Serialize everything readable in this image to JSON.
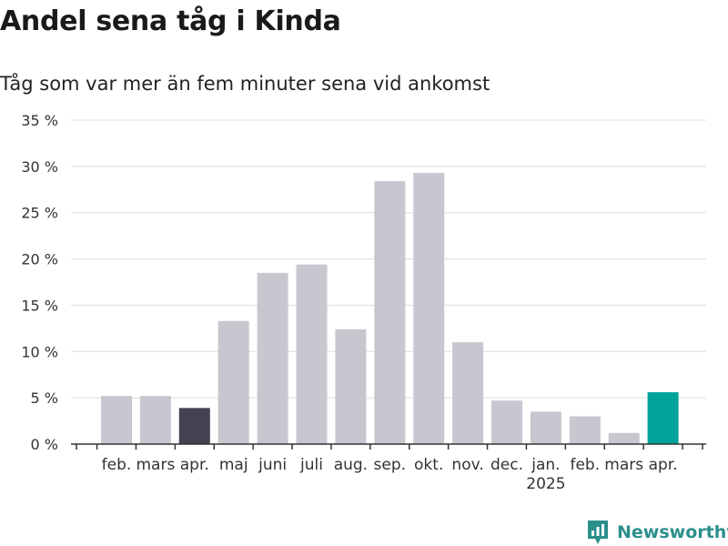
{
  "title": "Andel sena tåg i Kinda",
  "subtitle": "Tåg som var mer än fem minuter sena vid ankomst",
  "brand": {
    "name": "Newsworthy",
    "icon": "newsworthy-logo-icon",
    "color": "#2b8f8b"
  },
  "colors": {
    "default": "#c8c7d0",
    "previous_year": "#434250",
    "highlight": "#00a39a",
    "grid": "#dddddd",
    "axis": "#333333"
  },
  "chart_data": {
    "type": "bar",
    "categories": [
      "feb.",
      "mars",
      "apr.",
      "maj",
      "juni",
      "juli",
      "aug.",
      "sep.",
      "okt.",
      "nov.",
      "dec.",
      "jan.",
      "feb.",
      "mars",
      "apr."
    ],
    "year_labels": [
      {
        "index": 11,
        "label": "2025"
      }
    ],
    "values": [
      5.2,
      5.2,
      3.9,
      13.3,
      18.5,
      19.4,
      12.4,
      28.4,
      29.3,
      11.0,
      4.7,
      3.5,
      3.0,
      1.2,
      5.6
    ],
    "bar_styles": [
      "default",
      "default",
      "previous_year",
      "default",
      "default",
      "default",
      "default",
      "default",
      "default",
      "default",
      "default",
      "default",
      "default",
      "default",
      "highlight"
    ],
    "ylim": [
      0,
      35
    ],
    "yticks": [
      0,
      5,
      10,
      15,
      20,
      25,
      30,
      35
    ],
    "ytick_labels": [
      "0 %",
      "5 %",
      "10 %",
      "15 %",
      "20 %",
      "25 %",
      "30 %",
      "35 %"
    ],
    "grid": true
  }
}
